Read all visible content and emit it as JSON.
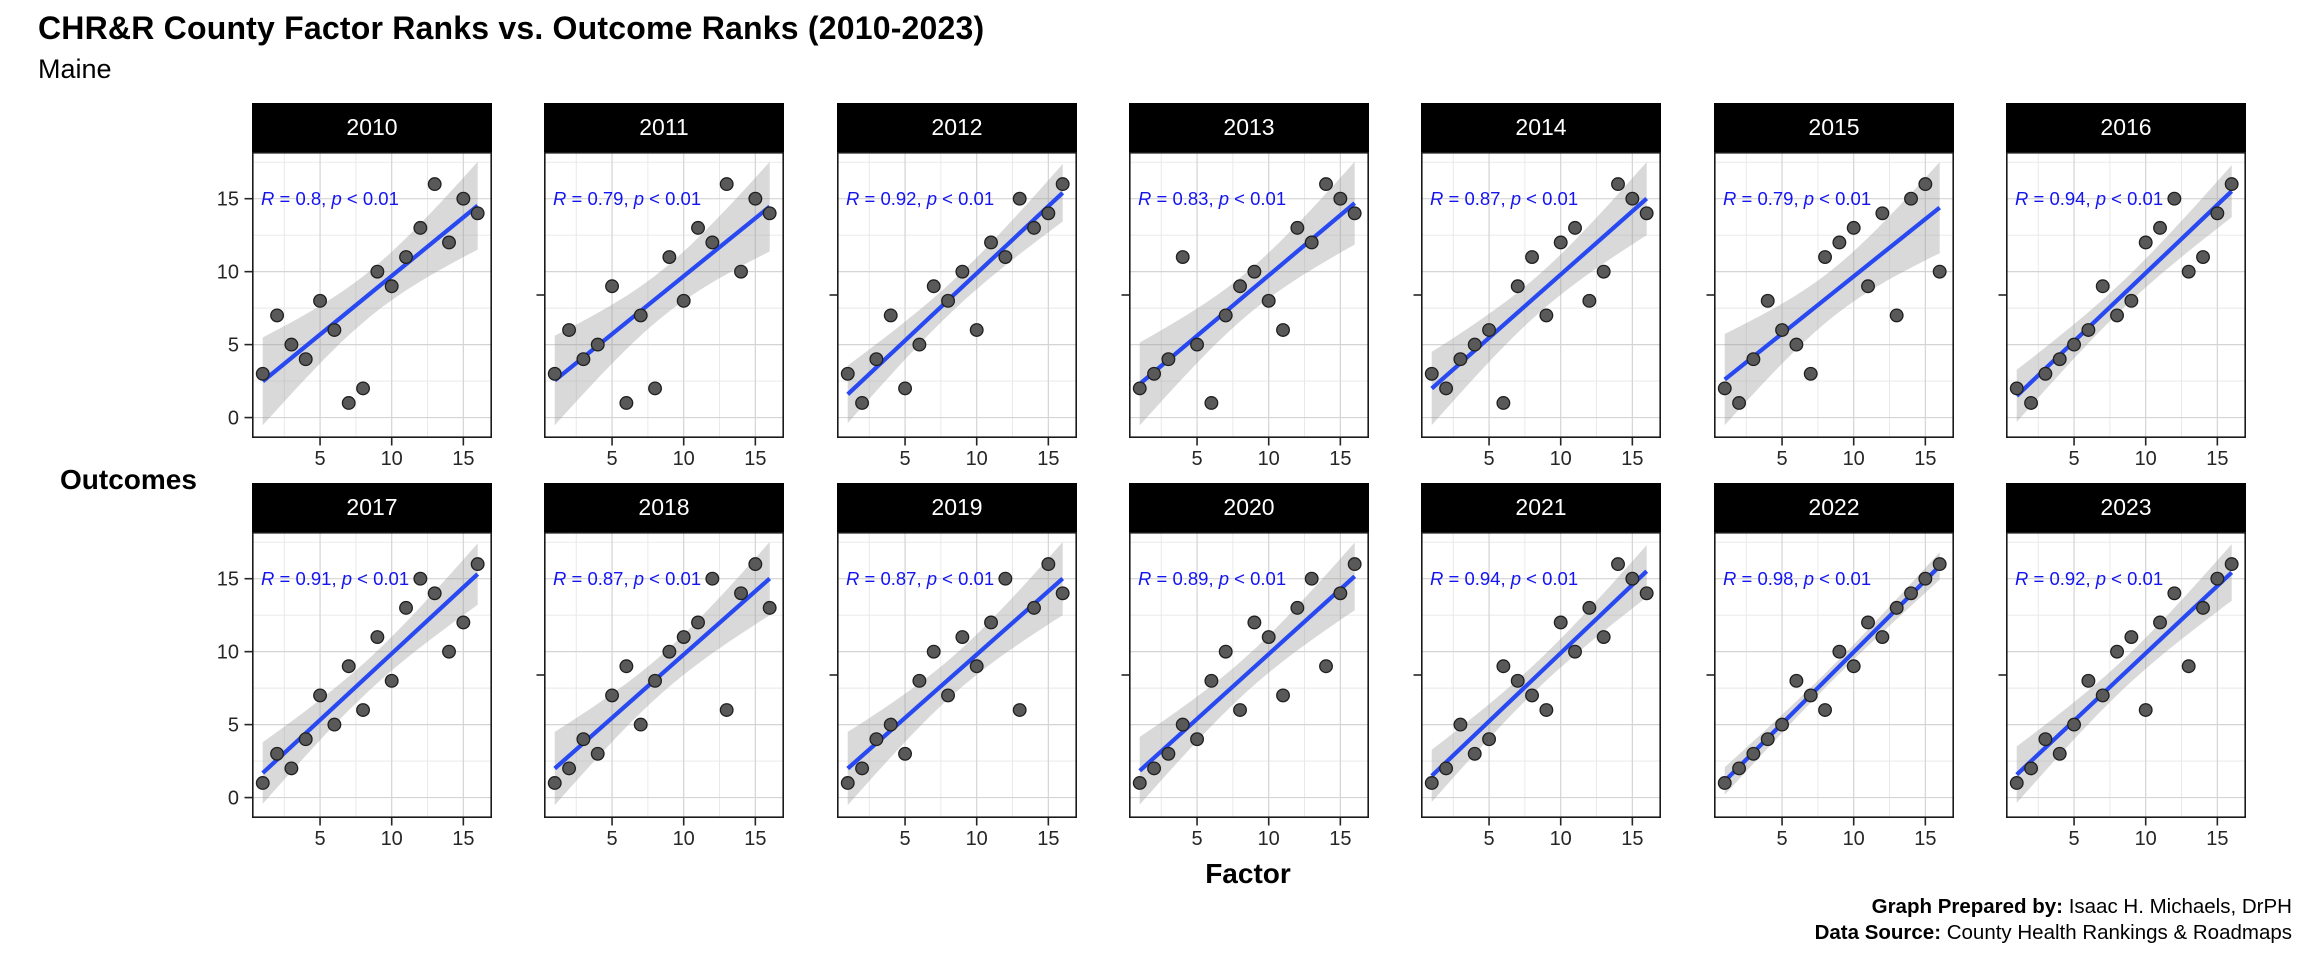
{
  "header": {
    "title": "CHR&R County Factor Ranks vs. Outcome Ranks (2010-2023)",
    "subtitle": "Maine"
  },
  "axis": {
    "x_label": "Factor",
    "y_label": "Outcomes",
    "x_ticks": [
      5,
      10,
      15
    ],
    "y_ticks": [
      0,
      5,
      10,
      15
    ]
  },
  "annotation_format": {
    "r_symbol": "R",
    "equals": " = ",
    "separator": ", ",
    "p_symbol": "p",
    "less_than": " < ",
    "p_value": "0.01"
  },
  "footer": {
    "prepared_by_label": "Graph Prepared by:",
    "prepared_by_value": " Isaac H. Michaels, DrPH",
    "source_label": "Data Source:",
    "source_value": " County Health Rankings & Roadmaps"
  },
  "colors": {
    "regression_line": "#2848f0",
    "annotation_text": "#1414f0",
    "point_fill": "#595959",
    "point_stroke": "#1f1f1f",
    "confidence_band": "#9b9b9b",
    "grid_major": "#d4d4d4",
    "grid_minor": "#e7e7e7",
    "panel_border": "#1a1a1a",
    "strip_bg": "#000000",
    "strip_text": "#ffffff",
    "tick_text": "#262626"
  },
  "chart_data": {
    "type": "scatter",
    "title": "CHR&R County Factor Ranks vs. Outcome Ranks (2010-2023)",
    "subtitle": "Maine",
    "xlabel": "Factor",
    "ylabel": "Outcomes",
    "xlim": [
      0.25,
      17.0
    ],
    "ylim": [
      -1.4,
      18.2
    ],
    "grid": "on",
    "x_values": [
      1,
      2,
      3,
      4,
      5,
      6,
      7,
      8,
      9,
      10,
      11,
      12,
      13,
      14,
      15,
      16
    ],
    "facets": [
      {
        "year": "2010",
        "r": "0.8",
        "y_values": [
          3,
          7,
          5,
          4,
          8,
          6,
          1,
          2,
          10,
          9,
          11,
          13,
          16,
          12,
          15,
          14
        ]
      },
      {
        "year": "2011",
        "r": "0.79",
        "y_values": [
          3,
          6,
          4,
          5,
          9,
          1,
          7,
          2,
          11,
          8,
          13,
          12,
          16,
          10,
          15,
          14
        ]
      },
      {
        "year": "2012",
        "r": "0.92",
        "y_values": [
          3,
          1,
          4,
          7,
          2,
          5,
          9,
          8,
          10,
          6,
          12,
          11,
          15,
          13,
          14,
          16
        ]
      },
      {
        "year": "2013",
        "r": "0.83",
        "y_values": [
          2,
          3,
          4,
          11,
          5,
          1,
          7,
          9,
          10,
          8,
          6,
          13,
          12,
          16,
          15,
          14
        ]
      },
      {
        "year": "2014",
        "r": "0.87",
        "y_values": [
          3,
          2,
          4,
          5,
          6,
          1,
          9,
          11,
          7,
          12,
          13,
          8,
          10,
          16,
          15,
          14
        ]
      },
      {
        "year": "2015",
        "r": "0.79",
        "y_values": [
          2,
          1,
          4,
          8,
          6,
          5,
          3,
          11,
          12,
          13,
          9,
          14,
          7,
          15,
          16,
          10
        ]
      },
      {
        "year": "2016",
        "r": "0.94",
        "y_values": [
          2,
          1,
          3,
          4,
          5,
          6,
          9,
          7,
          8,
          12,
          13,
          15,
          10,
          11,
          14,
          16
        ]
      },
      {
        "year": "2017",
        "r": "0.91",
        "y_values": [
          1,
          3,
          2,
          4,
          7,
          5,
          9,
          6,
          11,
          8,
          13,
          15,
          14,
          10,
          12,
          16
        ]
      },
      {
        "year": "2018",
        "r": "0.87",
        "y_values": [
          1,
          2,
          4,
          3,
          7,
          9,
          5,
          8,
          10,
          11,
          12,
          15,
          6,
          14,
          16,
          13
        ]
      },
      {
        "year": "2019",
        "r": "0.87",
        "y_values": [
          1,
          2,
          4,
          5,
          3,
          8,
          10,
          7,
          11,
          9,
          12,
          15,
          6,
          13,
          16,
          14
        ]
      },
      {
        "year": "2020",
        "r": "0.89",
        "y_values": [
          1,
          2,
          3,
          5,
          4,
          8,
          10,
          6,
          12,
          11,
          7,
          13,
          15,
          9,
          14,
          16
        ]
      },
      {
        "year": "2021",
        "r": "0.94",
        "y_values": [
          1,
          2,
          5,
          3,
          4,
          9,
          8,
          7,
          6,
          12,
          10,
          13,
          11,
          16,
          15,
          14
        ]
      },
      {
        "year": "2022",
        "r": "0.98",
        "y_values": [
          1,
          2,
          3,
          4,
          5,
          8,
          7,
          6,
          10,
          9,
          12,
          11,
          13,
          14,
          15,
          16
        ]
      },
      {
        "year": "2023",
        "r": "0.92",
        "y_values": [
          1,
          2,
          4,
          3,
          5,
          8,
          7,
          10,
          11,
          6,
          12,
          14,
          9,
          13,
          15,
          16
        ]
      }
    ]
  }
}
